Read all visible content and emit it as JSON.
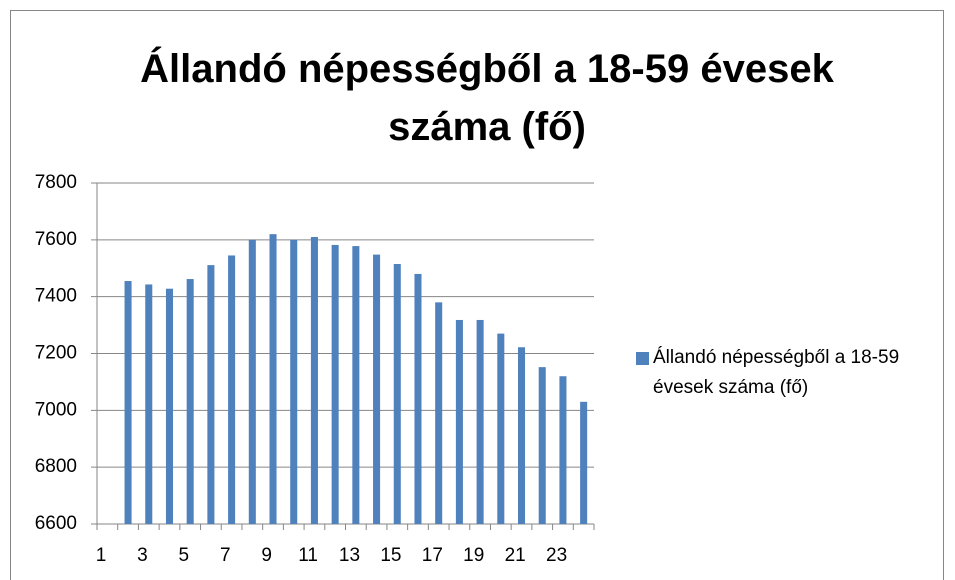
{
  "chart_data": {
    "type": "bar",
    "title": "Állandó népességből a 18-59 évesek száma (fő)",
    "categories": [
      1,
      null,
      3,
      null,
      5,
      null,
      7,
      null,
      9,
      null,
      11,
      null,
      13,
      null,
      15,
      null,
      17,
      null,
      19,
      null,
      21,
      null,
      23,
      null
    ],
    "series": [
      {
        "name": "Állandó népességből a 18-59 évesek száma (fő)",
        "color": "#4f81bd",
        "values": [
          null,
          7455,
          7443,
          7428,
          7462,
          7511,
          7545,
          7600,
          7620,
          7600,
          7610,
          7582,
          7578,
          7548,
          7515,
          7480,
          7380,
          7318,
          7318,
          7270,
          7222,
          7152,
          7120,
          7030
        ]
      }
    ],
    "ylim": [
      6600,
      7800
    ],
    "yticks": [
      6600,
      6800,
      7000,
      7200,
      7400,
      7600,
      7800
    ],
    "grid": true,
    "legend": "right"
  }
}
